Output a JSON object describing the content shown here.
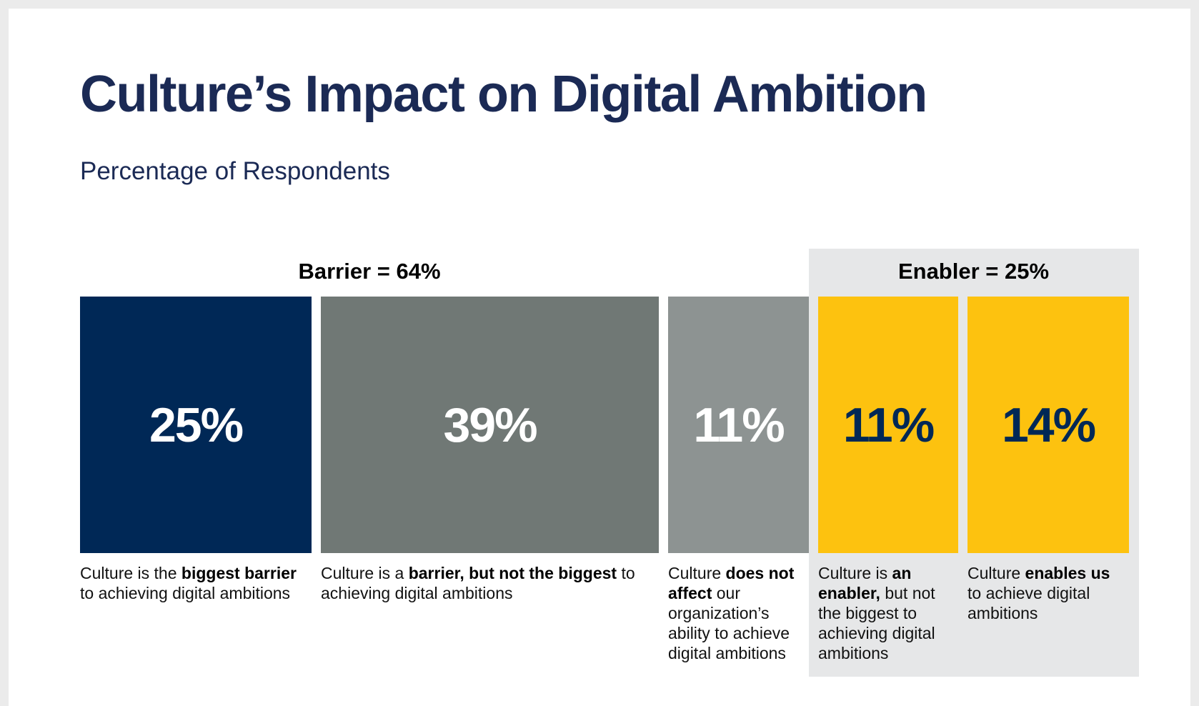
{
  "title": "Culture’s Impact on Digital Ambition",
  "subtitle": "Percentage of Respondents",
  "chart_data": {
    "type": "bar",
    "title": "Culture’s Impact on Digital Ambition",
    "subtitle": "Percentage of Respondents",
    "unit": "%",
    "groups": [
      {
        "label": "Barrier = 64%",
        "total": 64,
        "categories": [
          0,
          1
        ]
      },
      {
        "label": "Enabler = 25%",
        "total": 25,
        "categories": [
          3,
          4
        ],
        "highlighted": true
      }
    ],
    "categories": [
      "Culture is the biggest barrier to achieving digital ambitions",
      "Culture is a barrier, but not the biggest to achieving digital ambitions",
      "Culture does not affect our organization’s ability to achieve digital ambitions",
      "Culture is an enabler, but not the biggest to achieving digital ambitions",
      "Culture enables us to achieve digital ambitions"
    ],
    "values": [
      25,
      39,
      11,
      11,
      14
    ],
    "labels": [
      "25%",
      "39%",
      "11%",
      "11%",
      "14%"
    ],
    "colors": [
      "#002856",
      "#707875",
      "#8d9392",
      "#fdc20f",
      "#fdc20f"
    ],
    "label_colors": [
      "#ffffff",
      "#ffffff",
      "#ffffff",
      "#002856",
      "#002856"
    ],
    "descriptions": [
      [
        {
          "t": "Culture is the "
        },
        {
          "t": "biggest barrier",
          "b": true
        },
        {
          "t": " to achieving digital ambitions"
        }
      ],
      [
        {
          "t": "Culture is a "
        },
        {
          "t": "barrier, but not the biggest",
          "b": true
        },
        {
          "t": " to achieving digital ambitions"
        }
      ],
      [
        {
          "t": "Culture "
        },
        {
          "t": "does not affect",
          "b": true
        },
        {
          "t": " our organization’s ability to achieve digital ambitions"
        }
      ],
      [
        {
          "t": "Culture is "
        },
        {
          "t": "an enabler,",
          "b": true
        },
        {
          "t": " but not the biggest to achieving digital ambitions"
        }
      ],
      [
        {
          "t": "Culture "
        },
        {
          "t": "enables us",
          "b": true
        },
        {
          "t": " to achieve digital ambitions"
        }
      ]
    ],
    "xlabel": "",
    "ylabel": "",
    "grid": false
  }
}
